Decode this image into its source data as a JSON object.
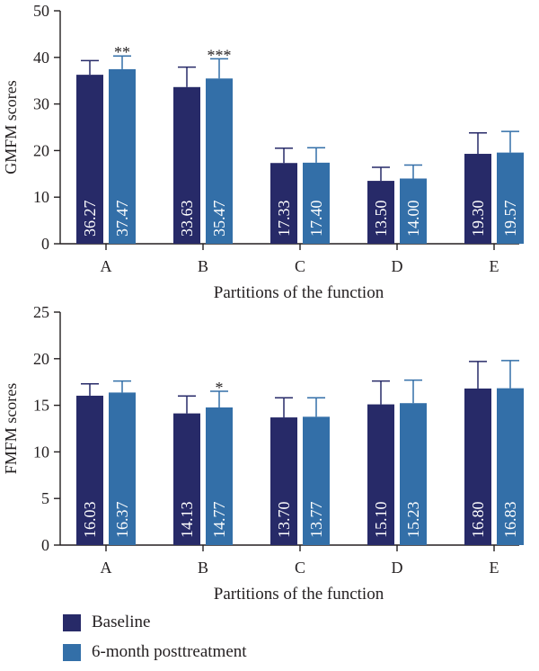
{
  "colors": {
    "baseline": "#272a68",
    "posttreatment": "#336fa8",
    "axis": "#231f20",
    "label_text": "#ffffff"
  },
  "legend": {
    "items": [
      {
        "label": "Baseline",
        "color": "#272a68"
      },
      {
        "label": "6-month posttreatment",
        "color": "#336fa8"
      }
    ]
  },
  "chart_data": [
    {
      "type": "bar",
      "ylabel": "GMFM scores",
      "xlabel": "Partitions of the function",
      "ylim": [
        0,
        50
      ],
      "yticks": [
        0,
        10,
        20,
        30,
        40,
        50
      ],
      "categories": [
        "A",
        "B",
        "C",
        "D",
        "E"
      ],
      "series": [
        {
          "name": "Baseline",
          "values": [
            36.27,
            33.63,
            17.33,
            13.5,
            19.3
          ],
          "labels": [
            "36.27",
            "33.63",
            "17.33",
            "13.50",
            "19.30"
          ],
          "error_upper": [
            39.3,
            37.9,
            20.5,
            16.4,
            23.8
          ]
        },
        {
          "name": "6-month posttreatment",
          "values": [
            37.47,
            35.47,
            17.4,
            14.0,
            19.57
          ],
          "labels": [
            "37.47",
            "35.47",
            "17.40",
            "14.00",
            "19.57"
          ],
          "error_upper": [
            40.3,
            39.7,
            20.6,
            16.9,
            24.1
          ]
        }
      ],
      "annotations": [
        "**",
        "***",
        "",
        "",
        ""
      ]
    },
    {
      "type": "bar",
      "ylabel": "FMFM scores",
      "xlabel": "Partitions of the function",
      "ylim": [
        0,
        25
      ],
      "yticks": [
        0,
        5,
        10,
        15,
        20,
        25
      ],
      "categories": [
        "A",
        "B",
        "C",
        "D",
        "E"
      ],
      "series": [
        {
          "name": "Baseline",
          "values": [
            16.03,
            14.13,
            13.7,
            15.1,
            16.8
          ],
          "labels": [
            "16.03",
            "14.13",
            "13.70",
            "15.10",
            "16.80"
          ],
          "error_upper": [
            17.3,
            16.0,
            15.8,
            17.6,
            19.7
          ]
        },
        {
          "name": "6-month posttreatment",
          "values": [
            16.37,
            14.77,
            13.77,
            15.23,
            16.83
          ],
          "labels": [
            "16.37",
            "14.77",
            "13.77",
            "15.23",
            "16.83"
          ],
          "error_upper": [
            17.6,
            16.5,
            15.8,
            17.7,
            19.8
          ]
        }
      ],
      "annotations": [
        "",
        "*",
        "",
        "",
        ""
      ]
    }
  ]
}
